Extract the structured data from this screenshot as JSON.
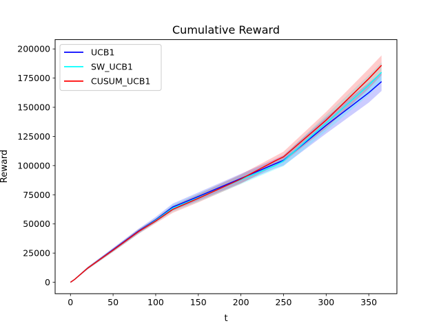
{
  "chart_data": {
    "type": "line",
    "title": "Cumulative Reward",
    "xlabel": "t",
    "ylabel": "Reward",
    "xlim": [
      -18,
      383
    ],
    "ylim": [
      -9800,
      208000
    ],
    "xticks": [
      0,
      50,
      100,
      150,
      200,
      250,
      300,
      350
    ],
    "yticks": [
      0,
      25000,
      50000,
      75000,
      100000,
      125000,
      150000,
      175000,
      200000
    ],
    "grid": false,
    "legend": "top-left",
    "series": [
      {
        "name": "UCB1",
        "color": "#0000ff",
        "x": [
          0,
          5,
          20,
          50,
          80,
          100,
          120,
          150,
          200,
          240,
          250,
          300,
          350,
          365
        ],
        "y": [
          0,
          2500,
          12000,
          28000,
          44000,
          53500,
          64500,
          73500,
          89000,
          101500,
          104500,
          134500,
          162500,
          172000
        ],
        "lower": [
          0,
          2000,
          11000,
          26500,
          42000,
          51500,
          61500,
          70000,
          85000,
          97500,
          100000,
          127500,
          154000,
          164000
        ],
        "upper": [
          0,
          3000,
          13000,
          29500,
          46000,
          56000,
          67500,
          77000,
          93000,
          105500,
          109000,
          141500,
          171000,
          180000
        ]
      },
      {
        "name": "SW_UCB1",
        "color": "#00ffff",
        "x": [
          0,
          5,
          20,
          50,
          80,
          100,
          120,
          150,
          200,
          240,
          250,
          300,
          350,
          365
        ],
        "y": [
          0,
          2500,
          12000,
          27500,
          43500,
          53000,
          63500,
          72500,
          88000,
          100000,
          104000,
          136500,
          169000,
          180000
        ],
        "lower": [
          0,
          2000,
          11000,
          26000,
          41500,
          51000,
          60500,
          69000,
          84000,
          96500,
          99500,
          129500,
          160500,
          171500
        ],
        "upper": [
          0,
          3000,
          13000,
          29000,
          45500,
          55000,
          66500,
          76000,
          92000,
          104000,
          108500,
          143500,
          177500,
          188500
        ]
      },
      {
        "name": "CUSUM_UCB1",
        "color": "#ff0000",
        "x": [
          0,
          5,
          20,
          50,
          80,
          100,
          120,
          150,
          200,
          240,
          250,
          300,
          350,
          365
        ],
        "y": [
          0,
          2500,
          12000,
          27500,
          43500,
          52500,
          62500,
          72000,
          88500,
          104000,
          107500,
          139000,
          174500,
          186000
        ],
        "lower": [
          0,
          2000,
          11000,
          26000,
          41500,
          50500,
          59500,
          68500,
          84500,
          100000,
          103000,
          132000,
          166000,
          177500
        ],
        "upper": [
          0,
          3000,
          13000,
          29000,
          45500,
          54500,
          65500,
          75500,
          92500,
          108000,
          112000,
          146000,
          183000,
          194500
        ]
      }
    ]
  }
}
